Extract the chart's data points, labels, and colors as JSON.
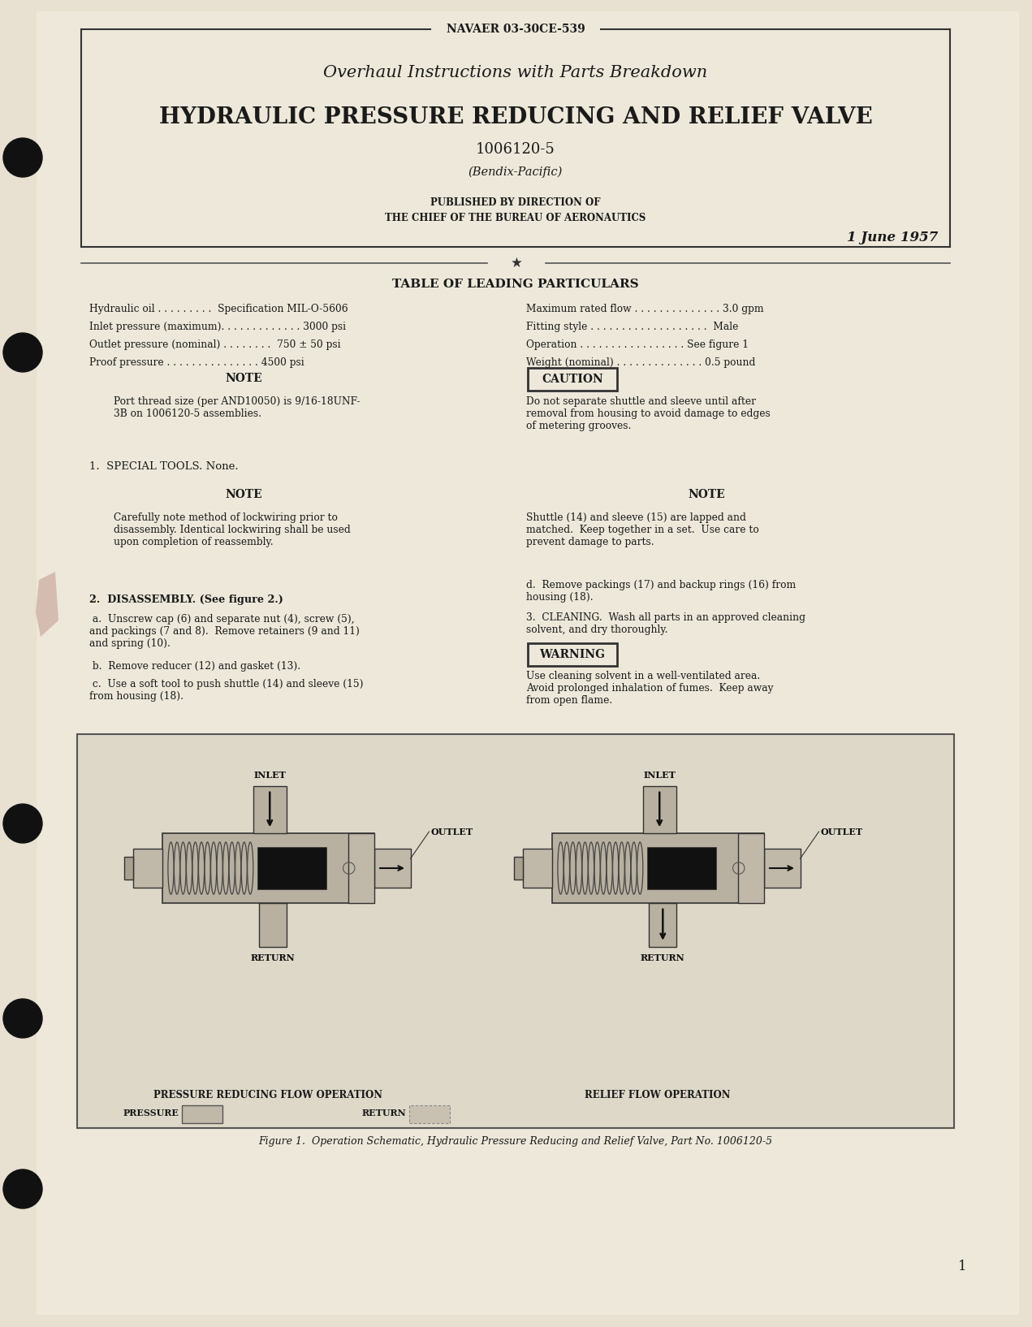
{
  "bg_color": "#e8e0d0",
  "page_color": "#ede8da",
  "text_color": "#1a1a1a",
  "doc_number": "NAVAER 03-30CE-539",
  "title_line1": "Overhaul Instructions with Parts Breakdown",
  "title_line2": "HYDRAULIC PRESSURE REDUCING AND RELIEF VALVE",
  "part_number": "1006120-5",
  "manufacturer": "(Bendix-Pacific)",
  "published_line1": "PUBLISHED BY DIRECTION OF",
  "published_line2": "THE CHIEF OF THE BUREAU OF AERONAUTICS",
  "date": "1 June 1957",
  "table_title": "TABLE OF LEADING PARTICULARS",
  "particulars_left": [
    [
      "Hydraulic oil",
      "Specification MIL-O-5606"
    ],
    [
      "Inlet pressure (maximum)",
      "3000 psi"
    ],
    [
      "Outlet pressure (nominal)",
      "750 ± 50 psi"
    ],
    [
      "Proof pressure",
      "4500 psi"
    ]
  ],
  "particulars_right": [
    [
      "Maximum rated flow",
      "3.0 gpm"
    ],
    [
      "Fitting style",
      "Male"
    ],
    [
      "Operation",
      "See figure 1"
    ],
    [
      "Weight (nominal)",
      "0.5 pound"
    ]
  ],
  "note1_title": "NOTE",
  "note1_text": "Port thread size (per AND10050) is 9/16-18UNF-\n3B on 1006120-5 assemblies.",
  "caution_title": "CAUTION",
  "caution_text": "Do not separate shuttle and sleeve until after\nremoval from housing to avoid damage to edges\nof metering grooves.",
  "special_tools": "1.  SPECIAL TOOLS. None.",
  "note2_title": "NOTE",
  "note2_text": "Carefully note method of lockwiring prior to\ndisassembly. Identical lockwiring shall be used\nupon completion of reassembly.",
  "note3_title": "NOTE",
  "note3_text": "Shuttle (14) and sleeve (15) are lapped and\nmatched.  Keep together in a set.  Use care to\nprevent damage to parts.",
  "disassembly_title": "2.  DISASSEMBLY. (See figure 2.)",
  "disassembly_a": " a.  Unscrew cap (6) and separate nut (4), screw (5),\nand packings (7 and 8).  Remove retainers (9 and 11)\nand spring (10).",
  "disassembly_b": " b.  Remove reducer (12) and gasket (13).",
  "disassembly_c": " c.  Use a soft tool to push shuttle (14) and sleeve (15)\nfrom housing (18).",
  "remove_packings": "d.  Remove packings (17) and backup rings (16) from\nhousing (18).",
  "cleaning_line": "3.  CLEANING.  Wash all parts in an approved cleaning\nsolvent, and dry thoroughly.",
  "warning_title": "WARNING",
  "warning_text": "Use cleaning solvent in a well-ventilated area.\nAvoid prolonged inhalation of fumes.  Keep away\nfrom open flame.",
  "figure_caption": "Figure 1.  Operation Schematic, Hydraulic Pressure Reducing and Relief Valve, Part No. 1006120-5",
  "fig_label_left": "PRESSURE REDUCING FLOW OPERATION",
  "fig_label_right": "RELIEF FLOW OPERATION",
  "page_number": "1",
  "dots_left": ". . . . . . . . .",
  "dots_mid": ". . . . . . . . . . . .",
  "dots_long": ". . . . . . . . . . . . . . ."
}
